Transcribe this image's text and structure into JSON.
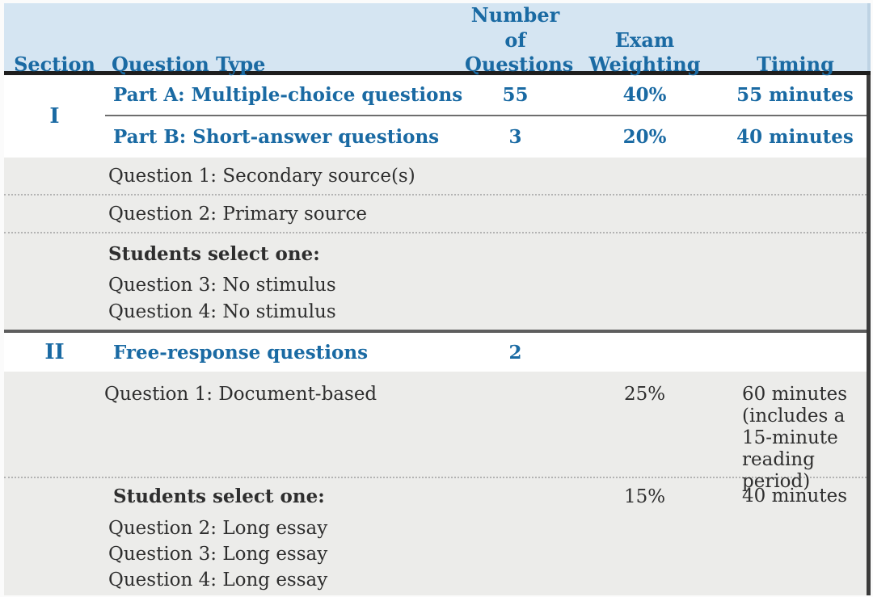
{
  "table": {
    "columns": {
      "section": "Section",
      "question_type": "Question Type",
      "number_of_questions": "Number of\nQuestions",
      "exam_weighting": "Exam\nWeighting",
      "timing": "Timing"
    },
    "section_1": {
      "label": "I",
      "part_a": {
        "question_type": "Part A: Multiple-choice questions",
        "number": "55",
        "weighting": "40%",
        "timing": "55 minutes"
      },
      "part_b": {
        "question_type": "Part B: Short-answer questions",
        "number": "3",
        "weighting": "20%",
        "timing": "40 minutes"
      },
      "detail_rows": [
        {
          "label": "Question 1: Secondary source(s)"
        },
        {
          "label": "Question 2: Primary source"
        }
      ],
      "select_group": {
        "heading": "Students select one:",
        "options": [
          "Question 3: No stimulus",
          "Question 4: No stimulus"
        ]
      }
    },
    "section_2": {
      "label": "II",
      "question_type": "Free-response questions",
      "number": "2",
      "detail_1": {
        "label": "Question 1: Document-based",
        "weighting": "25%",
        "timing": "60 minutes\n(includes a\n15-minute\nreading period)"
      },
      "select_group": {
        "heading": "Students select one:",
        "weighting": "15%",
        "timing": "40 minutes",
        "options": [
          "Question 2: Long essay",
          "Question 3: Long essay",
          "Question 4: Long essay"
        ]
      }
    },
    "colors": {
      "header_bg": "#d5e5f2",
      "accent_blue": "#1a6aa3",
      "row_gray": "#ececea",
      "text_dark": "#2e2e2e",
      "header_rule": "#1e1e1e"
    }
  }
}
